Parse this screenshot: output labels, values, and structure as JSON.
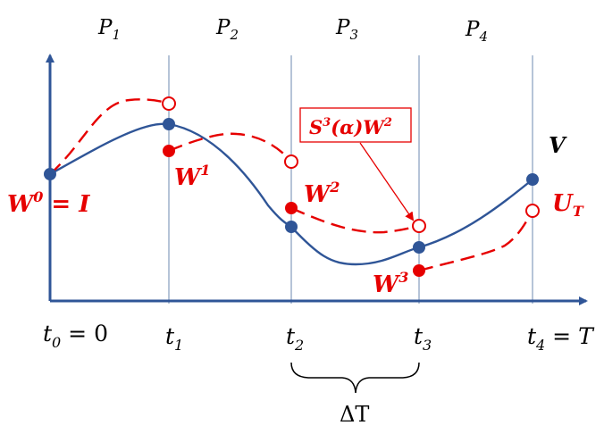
{
  "colors": {
    "axis": "#2F5597",
    "vline": "#8FA4C4",
    "blue": "#2F5597",
    "red": "#E60000"
  },
  "partitions": [
    {
      "base": "P",
      "sub": "1"
    },
    {
      "base": "P",
      "sub": "2"
    },
    {
      "base": "P",
      "sub": "3"
    },
    {
      "base": "P",
      "sub": "4"
    }
  ],
  "time_labels": [
    {
      "base": "t",
      "sub": "0",
      "suffix": " = 0"
    },
    {
      "base": "t",
      "sub": "1",
      "suffix": ""
    },
    {
      "base": "t",
      "sub": "2",
      "suffix": ""
    },
    {
      "base": "t",
      "sub": "3",
      "suffix": ""
    },
    {
      "base": "t",
      "sub": "4",
      "suffix": " = T"
    }
  ],
  "labels": {
    "V": "V",
    "W0": {
      "base": "W",
      "sup": "0",
      "suffix": " = I"
    },
    "W1": {
      "base": "W",
      "sup": "1"
    },
    "W2": {
      "base": "W",
      "sup": "2"
    },
    "W3": {
      "base": "W",
      "sup": "3"
    },
    "UT": {
      "base": "U",
      "sub": "T"
    },
    "callout": {
      "a": "S",
      "a_sup": "3",
      "mid": "(α)",
      "b": "W",
      "b_sup": "2"
    },
    "deltaT": "ΔT"
  }
}
